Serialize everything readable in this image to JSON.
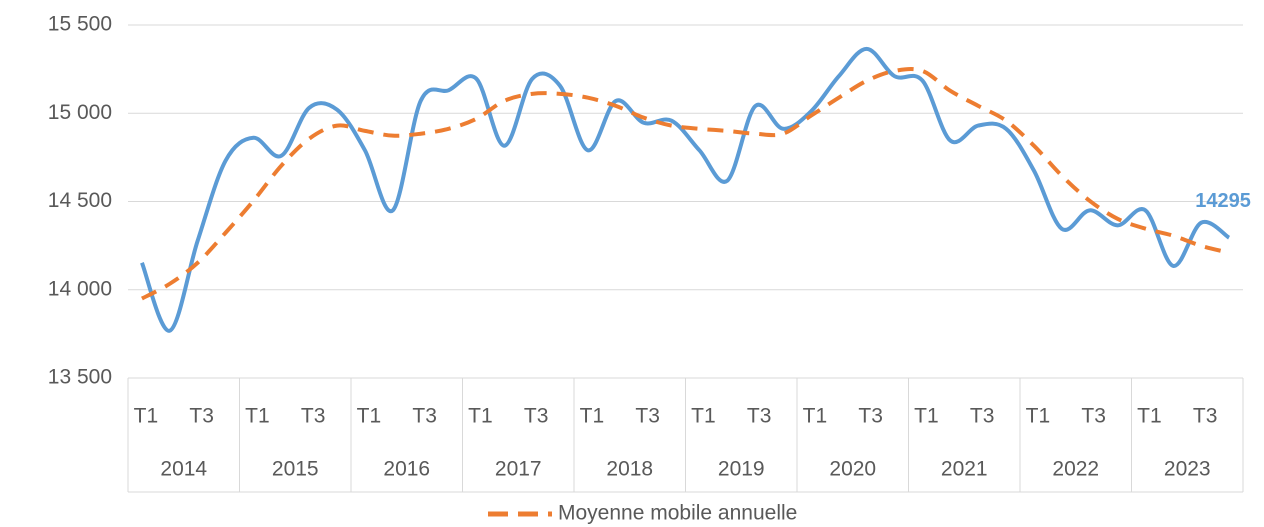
{
  "chart_data": {
    "type": "line",
    "categories": [
      "T1",
      null,
      "T3",
      null,
      "T1",
      null,
      "T3",
      null,
      "T1",
      null,
      "T3",
      null,
      "T1",
      null,
      "T3",
      null,
      "T1",
      null,
      "T3",
      null,
      "T1",
      null,
      "T3",
      null,
      "T1",
      null,
      "T3",
      null,
      "T1",
      null,
      "T3",
      null,
      "T1",
      null,
      "T3",
      null,
      "T1",
      null,
      "T3",
      null
    ],
    "category_groups": [
      "2014",
      "2015",
      "2016",
      "2017",
      "2018",
      "2019",
      "2020",
      "2021",
      "2022",
      "2023"
    ],
    "series": [
      {
        "color": "#5b9bd5",
        "style": "solid",
        "values": [
          14153,
          13768,
          14278,
          14731,
          14861,
          14759,
          15031,
          15020,
          14790,
          14450,
          15070,
          15130,
          15195,
          14816,
          15195,
          15155,
          14790,
          15070,
          14946,
          14958,
          14790,
          14618,
          15040,
          14912,
          15010,
          15210,
          15365,
          15210,
          15185,
          14845,
          14930,
          14912,
          14675,
          14345,
          14450,
          14365,
          14450,
          14135,
          14380,
          14295
        ],
        "value_labels": [
          null,
          null,
          null,
          null,
          null,
          null,
          null,
          null,
          null,
          null,
          null,
          null,
          null,
          null,
          null,
          null,
          null,
          null,
          null,
          null,
          null,
          null,
          null,
          null,
          null,
          null,
          null,
          null,
          null,
          null,
          null,
          null,
          null,
          null,
          null,
          null,
          null,
          null,
          null,
          "14295"
        ]
      },
      {
        "name": "Moyenne mobile annuelle",
        "color": "#ed7d31",
        "style": "dashed",
        "values": [
          13950,
          14034,
          14153,
          14323,
          14504,
          14703,
          14856,
          14930,
          14900,
          14873,
          14884,
          14912,
          14969,
          15070,
          15110,
          15110,
          15088,
          15042,
          14975,
          14930,
          14912,
          14900,
          14884,
          14884,
          14986,
          15088,
          15184,
          15240,
          15240,
          15127,
          15042,
          14958,
          14816,
          14646,
          14504,
          14402,
          14346,
          14306,
          14249,
          14210
        ]
      }
    ],
    "ylim": [
      13500,
      15500
    ],
    "yticks": [
      {
        "value": 13500,
        "label": "13 500"
      },
      {
        "value": 14000,
        "label": "14 000"
      },
      {
        "value": 14500,
        "label": "14 500"
      },
      {
        "value": 15000,
        "label": "15 000"
      },
      {
        "value": 15500,
        "label": "15 500"
      }
    ],
    "grid": true,
    "legend": "bottom"
  }
}
